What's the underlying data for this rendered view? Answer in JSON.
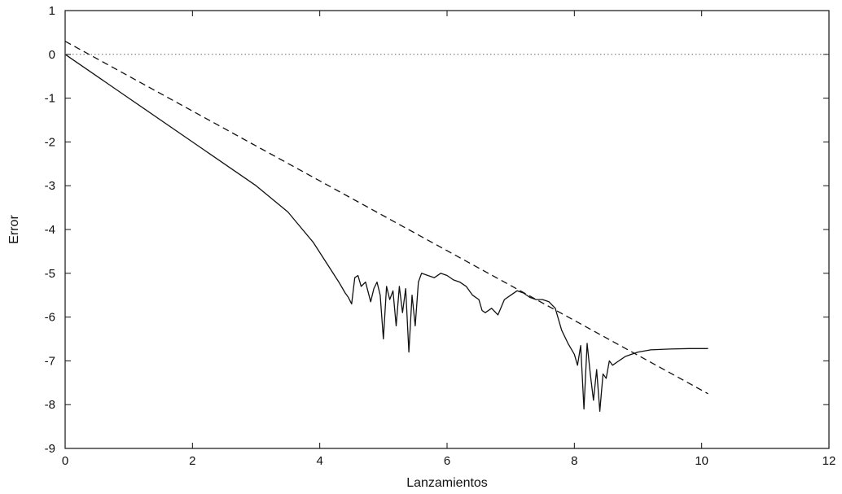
{
  "chart_data": {
    "type": "line",
    "title": "",
    "xlabel": "Lanzamientos",
    "ylabel": "Error",
    "xlim": [
      0,
      12
    ],
    "ylim": [
      -9,
      1
    ],
    "xticks": [
      0,
      2,
      4,
      6,
      8,
      10,
      12
    ],
    "yticks": [
      -9,
      -8,
      -7,
      -6,
      -5,
      -4,
      -3,
      -2,
      -1,
      0,
      1
    ],
    "grid": false,
    "legend": "none",
    "series": [
      {
        "style": "solid",
        "color": "#111111",
        "x": [
          0,
          1,
          2,
          3,
          3.5,
          3.9,
          4.1,
          4.3,
          4.4,
          4.45,
          4.5,
          4.55,
          4.6,
          4.65,
          4.72,
          4.8,
          4.85,
          4.9,
          4.95,
          5.0,
          5.05,
          5.1,
          5.15,
          5.2,
          5.25,
          5.3,
          5.35,
          5.4,
          5.45,
          5.5,
          5.55,
          5.6,
          5.7,
          5.8,
          5.9,
          6.0,
          6.1,
          6.2,
          6.3,
          6.4,
          6.5,
          6.55,
          6.6,
          6.7,
          6.8,
          6.9,
          7.0,
          7.1,
          7.2,
          7.3,
          7.4,
          7.5,
          7.6,
          7.7,
          7.8,
          7.9,
          8.0,
          8.05,
          8.1,
          8.15,
          8.2,
          8.25,
          8.3,
          8.35,
          8.4,
          8.45,
          8.5,
          8.55,
          8.6,
          8.7,
          8.8,
          8.9,
          9.0,
          9.2,
          9.5,
          9.8,
          10.1
        ],
        "values": [
          0,
          -1.0,
          -2.0,
          -3.0,
          -3.6,
          -4.3,
          -4.75,
          -5.2,
          -5.45,
          -5.55,
          -5.7,
          -5.1,
          -5.05,
          -5.3,
          -5.2,
          -5.65,
          -5.35,
          -5.2,
          -5.5,
          -6.5,
          -5.3,
          -5.6,
          -5.4,
          -6.2,
          -5.3,
          -5.9,
          -5.35,
          -6.8,
          -5.5,
          -6.2,
          -5.2,
          -5.0,
          -5.05,
          -5.1,
          -5.0,
          -5.05,
          -5.15,
          -5.2,
          -5.3,
          -5.5,
          -5.6,
          -5.85,
          -5.9,
          -5.8,
          -5.95,
          -5.6,
          -5.5,
          -5.4,
          -5.45,
          -5.55,
          -5.6,
          -5.6,
          -5.65,
          -5.8,
          -6.3,
          -6.6,
          -6.85,
          -7.1,
          -6.65,
          -8.1,
          -6.6,
          -7.3,
          -7.9,
          -7.2,
          -8.15,
          -7.3,
          -7.4,
          -7.0,
          -7.1,
          -7.0,
          -6.9,
          -6.85,
          -6.8,
          -6.75,
          -6.73,
          -6.72,
          -6.72
        ]
      },
      {
        "style": "dashed",
        "color": "#111111",
        "x": [
          0,
          10.1
        ],
        "values": [
          0.3,
          -7.75
        ]
      },
      {
        "style": "dotted",
        "color": "#666666",
        "x": [
          0,
          12
        ],
        "values": [
          0,
          0
        ]
      }
    ]
  }
}
